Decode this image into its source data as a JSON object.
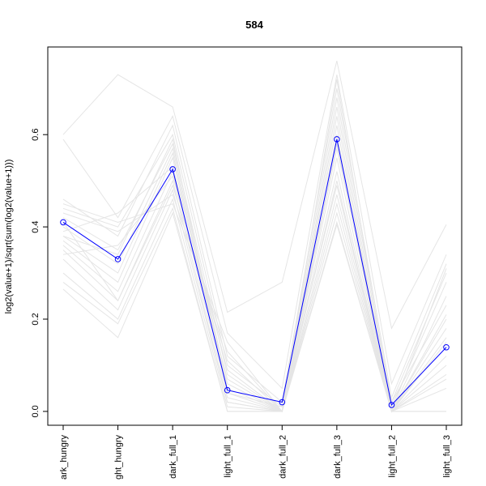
{
  "chart_data": {
    "type": "line",
    "title": "584",
    "xlabel": "",
    "ylabel": "log2(value+1)/sqrt(sum(log2(value+1)))",
    "categories": [
      "dark_hungry",
      "light_hungry",
      "dark_full_1",
      "light_full_1",
      "dark_full_2",
      "dark_full_3",
      "light_full_2",
      "light_full_3"
    ],
    "category_labels_shown": [
      "ark_hungry",
      "ght_hungry",
      "dark_full_1",
      "light_full_1",
      "dark_full_2",
      "dark_full_3",
      "light_full_2",
      "light_full_3"
    ],
    "yticks": [
      0.0,
      0.2,
      0.4,
      0.6
    ],
    "ytick_labels": [
      "0.0",
      "0.2",
      "0.4",
      "0.6"
    ],
    "ylim": [
      -0.03,
      0.79
    ],
    "grid": false,
    "highlight_color": "#0000ff",
    "background_color": "#e5e5e5",
    "highlight": {
      "values": [
        0.41,
        0.33,
        0.525,
        0.046,
        0.02,
        0.59,
        0.014,
        0.139
      ]
    },
    "background_series": [
      [
        0.6,
        0.73,
        0.66,
        0.215,
        0.28,
        0.76,
        0.18,
        0.405
      ],
      [
        0.59,
        0.42,
        0.64,
        0.17,
        0.05,
        0.73,
        0.06,
        0.34
      ],
      [
        0.46,
        0.38,
        0.62,
        0.12,
        0.02,
        0.7,
        0.03,
        0.32
      ],
      [
        0.44,
        0.4,
        0.6,
        0.1,
        0.01,
        0.68,
        0.02,
        0.3
      ],
      [
        0.42,
        0.35,
        0.58,
        0.08,
        0.0,
        0.66,
        0.01,
        0.28
      ],
      [
        0.4,
        0.32,
        0.57,
        0.06,
        0.0,
        0.64,
        0.0,
        0.25
      ],
      [
        0.38,
        0.3,
        0.56,
        0.05,
        0.0,
        0.62,
        0.0,
        0.21
      ],
      [
        0.37,
        0.28,
        0.55,
        0.04,
        0.0,
        0.6,
        0.0,
        0.18
      ],
      [
        0.36,
        0.26,
        0.52,
        0.03,
        0.0,
        0.58,
        0.0,
        0.16
      ],
      [
        0.35,
        0.24,
        0.5,
        0.02,
        0.0,
        0.55,
        0.0,
        0.15
      ],
      [
        0.33,
        0.22,
        0.48,
        0.02,
        0.0,
        0.52,
        0.0,
        0.12
      ],
      [
        0.3,
        0.2,
        0.46,
        0.01,
        0.0,
        0.5,
        0.0,
        0.1
      ],
      [
        0.28,
        0.19,
        0.44,
        0.0,
        0.0,
        0.47,
        0.0,
        0.08
      ],
      [
        0.265,
        0.16,
        0.43,
        0.0,
        0.0,
        0.45,
        0.0,
        0.05
      ],
      [
        0.45,
        0.41,
        0.45,
        0.15,
        0.0,
        0.43,
        0.0,
        0.0
      ],
      [
        0.43,
        0.39,
        0.47,
        0.13,
        0.0,
        0.41,
        0.0,
        0.0
      ],
      [
        0.39,
        0.43,
        0.53,
        0.09,
        0.0,
        0.405,
        0.0,
        0.07
      ],
      [
        0.34,
        0.36,
        0.51,
        0.07,
        0.0,
        0.72,
        0.0,
        0.2
      ],
      [
        0.41,
        0.24,
        0.49,
        0.11,
        0.0,
        0.57,
        0.02,
        0.23
      ],
      [
        0.38,
        0.34,
        0.59,
        0.04,
        0.01,
        0.49,
        0.0,
        0.31
      ]
    ]
  }
}
